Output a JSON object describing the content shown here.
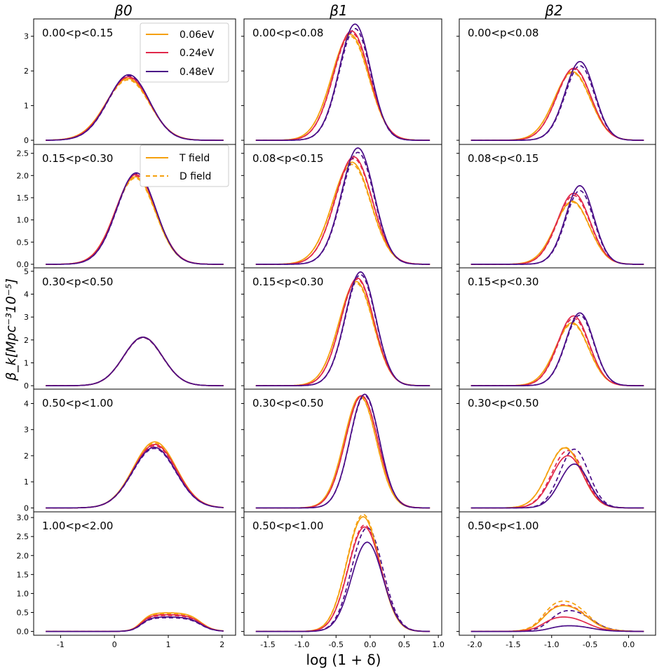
{
  "figure": {
    "column_titles": [
      "β0",
      "β1",
      "β2"
    ],
    "xlabel": "log (1 + δ)",
    "ylabel": "β_k[Mpc⁻³10⁻⁵]"
  },
  "legends": {
    "neutrino_masses": [
      {
        "label": "0.06eV",
        "color": "#f5a00d"
      },
      {
        "label": "0.24eV",
        "color": "#e0284a"
      },
      {
        "label": "0.48eV",
        "color": "#4a0c87"
      }
    ],
    "field_types": [
      {
        "label": "T field",
        "style": "solid",
        "color": "#f5a00d"
      },
      {
        "label": "D field",
        "style": "dashed",
        "color": "#f5a00d"
      }
    ]
  },
  "chart_data": {
    "type": "line",
    "grid": false,
    "columns": [
      {
        "title": "β0",
        "xlim": [
          -1.5,
          2.25
        ],
        "xticks": [
          -1,
          0,
          1,
          2
        ],
        "panels": [
          {
            "label": "0.00<p<0.15",
            "ylim": [
              -0.12,
              3.5
            ],
            "yticks": [
              0,
              1,
              2,
              3
            ],
            "curves": {
              "mu": [
                0.15,
                0.16,
                0.17
              ],
              "sigma": [
                0.42,
                0.41,
                0.4
              ],
              "skew": [
                0.35,
                0.35,
                0.35
              ],
              "T": [
                1.78,
                1.83,
                1.89
              ],
              "D": [
                1.74,
                1.8,
                1.86
              ]
            }
          },
          {
            "label": "0.15<p<0.30",
            "ylim": [
              -0.08,
              2.7
            ],
            "yticks": [
              0.0,
              0.5,
              1.0,
              1.5,
              2.0,
              2.5
            ],
            "curves": {
              "mu": [
                0.32,
                0.33,
                0.34
              ],
              "sigma": [
                0.38,
                0.38,
                0.37
              ],
              "skew": [
                0.25,
                0.25,
                0.25
              ],
              "T": [
                1.97,
                2.02,
                2.06
              ],
              "D": [
                1.94,
                1.99,
                2.03
              ]
            }
          },
          {
            "label": "0.30<p<0.50",
            "ylim": [
              -0.15,
              5.15
            ],
            "yticks": [
              0,
              1,
              2,
              3,
              4,
              5
            ],
            "curves": {
              "mu": [
                0.53,
                0.53,
                0.53
              ],
              "sigma": [
                0.36,
                0.36,
                0.36
              ],
              "skew": [
                0.0,
                0.0,
                0.0
              ],
              "T": [
                2.12,
                2.12,
                2.12
              ],
              "D": [
                2.1,
                2.1,
                2.1
              ]
            }
          },
          {
            "label": "0.50<p<1.00",
            "ylim": [
              -0.15,
              4.55
            ],
            "yticks": [
              0,
              1,
              2,
              3,
              4
            ],
            "curves": {
              "mu": [
                0.75,
                0.75,
                0.74
              ],
              "sigma": [
                0.4,
                0.4,
                0.4
              ],
              "skew": [
                0.0,
                0.0,
                0.0
              ],
              "T": [
                2.53,
                2.43,
                2.32
              ],
              "D": [
                2.48,
                2.38,
                2.28
              ]
            }
          },
          {
            "label": "1.00<p<2.00",
            "ylim": [
              -0.1,
              3.15
            ],
            "yticks": [
              0.0,
              0.5,
              1.0,
              1.5,
              2.0,
              2.5,
              3.0
            ],
            "curves": {
              "mu": [
                1.05,
                1.05,
                1.05
              ],
              "sigma": [
                0.55,
                0.55,
                0.55
              ],
              "skew": [
                0.0,
                0.0,
                0.0
              ],
              "flat": true,
              "T": [
                0.49,
                0.44,
                0.38
              ],
              "D": [
                0.47,
                0.42,
                0.36
              ]
            }
          }
        ]
      },
      {
        "title": "β1",
        "xlim": [
          -1.85,
          1.05
        ],
        "xticks": [
          -1.5,
          -1.0,
          -0.5,
          0.0,
          0.5,
          1.0
        ],
        "panels": [
          {
            "label": "0.00<p<0.08",
            "ylim": [
              -0.12,
              3.5
            ],
            "yticks": [
              0,
              1,
              2,
              3
            ],
            "curves": {
              "mu": [
                -0.35,
                -0.33,
                -0.28
              ],
              "sigma": [
                0.28,
                0.27,
                0.24
              ],
              "skew": [
                0.3,
                0.3,
                0.35
              ],
              "T": [
                3.05,
                3.15,
                3.35
              ],
              "D": [
                3.0,
                3.1,
                3.22
              ]
            }
          },
          {
            "label": "0.08<p<0.15",
            "ylim": [
              -0.08,
              2.7
            ],
            "yticks": [
              0.0,
              0.5,
              1.0,
              1.5,
              2.0,
              2.5
            ],
            "curves": {
              "mu": [
                -0.33,
                -0.3,
                -0.24
              ],
              "sigma": [
                0.29,
                0.28,
                0.25
              ],
              "skew": [
                0.3,
                0.3,
                0.35
              ],
              "T": [
                2.3,
                2.42,
                2.62
              ],
              "D": [
                2.25,
                2.38,
                2.52
              ]
            }
          },
          {
            "label": "0.15<p<0.30",
            "ylim": [
              -0.15,
              5.15
            ],
            "yticks": [
              0,
              1,
              2,
              3,
              4,
              5
            ],
            "curves": {
              "mu": [
                -0.26,
                -0.24,
                -0.19
              ],
              "sigma": [
                0.26,
                0.25,
                0.23
              ],
              "skew": [
                0.3,
                0.3,
                0.3
              ],
              "T": [
                4.55,
                4.7,
                4.97
              ],
              "D": [
                4.48,
                4.65,
                4.85
              ]
            }
          },
          {
            "label": "0.30<p<0.50",
            "ylim": [
              -0.15,
              4.55
            ],
            "yticks": [
              0,
              1,
              2,
              3,
              4
            ],
            "curves": {
              "mu": [
                -0.18,
                -0.16,
                -0.12
              ],
              "sigma": [
                0.24,
                0.24,
                0.22
              ],
              "skew": [
                0.2,
                0.2,
                0.25
              ],
              "T": [
                4.28,
                4.3,
                4.35
              ],
              "D": [
                4.25,
                4.28,
                4.3
              ]
            }
          },
          {
            "label": "0.50<p<1.00",
            "ylim": [
              -0.1,
              3.15
            ],
            "yticks": [
              0.0,
              0.5,
              1.0,
              1.5,
              2.0,
              2.5,
              3.0
            ],
            "curves": {
              "mu": [
                -0.12,
                -0.1,
                -0.06
              ],
              "sigma": [
                0.24,
                0.24,
                0.23
              ],
              "skew": [
                0.1,
                0.1,
                0.1
              ],
              "T": [
                3.02,
                2.75,
                2.35
              ],
              "D": [
                3.08,
                2.8,
                2.73
              ]
            }
          }
        ]
      },
      {
        "title": "β2",
        "xlim": [
          -2.2,
          0.35
        ],
        "xticks": [
          -2.0,
          -1.5,
          -1.0,
          -0.5,
          0.0
        ],
        "panels": [
          {
            "label": "0.00<p<0.08",
            "ylim": [
              -0.12,
              3.5
            ],
            "yticks": [
              0,
              1,
              2,
              3
            ],
            "curves": {
              "mu": [
                -0.78,
                -0.76,
                -0.68
              ],
              "sigma": [
                0.24,
                0.23,
                0.2
              ],
              "skew": [
                0.3,
                0.3,
                0.35
              ],
              "T": [
                1.98,
                2.08,
                2.27
              ],
              "D": [
                1.95,
                2.05,
                2.15
              ]
            }
          },
          {
            "label": "0.08<p<0.15",
            "ylim": [
              -0.08,
              2.7
            ],
            "yticks": [
              0.0,
              0.5,
              1.0,
              1.5,
              2.0,
              2.5
            ],
            "curves": {
              "mu": [
                -0.78,
                -0.76,
                -0.68
              ],
              "sigma": [
                0.23,
                0.22,
                0.19
              ],
              "skew": [
                0.3,
                0.3,
                0.35
              ],
              "T": [
                1.42,
                1.6,
                1.77
              ],
              "D": [
                1.4,
                1.55,
                1.66
              ]
            }
          },
          {
            "label": "0.15<p<0.30",
            "ylim": [
              -0.15,
              5.15
            ],
            "yticks": [
              0,
              1,
              2,
              3,
              4,
              5
            ],
            "curves": {
              "mu": [
                -0.78,
                -0.76,
                -0.68
              ],
              "sigma": [
                0.22,
                0.21,
                0.19
              ],
              "skew": [
                0.3,
                0.3,
                0.35
              ],
              "T": [
                2.75,
                3.05,
                3.18
              ],
              "D": [
                2.7,
                2.95,
                3.08
              ]
            }
          },
          {
            "label": "0.30<p<0.50",
            "ylim": [
              -0.15,
              4.55
            ],
            "yticks": [
              0,
              1,
              2,
              3,
              4
            ],
            "curves": {
              "mu": [
                -0.86,
                -0.82,
                -0.74
              ],
              "sigma": [
                0.22,
                0.21,
                0.19
              ],
              "skew": [
                0.2,
                0.2,
                0.25
              ],
              "T": [
                2.3,
                2.0,
                1.68
              ],
              "D": [
                2.32,
                2.2,
                2.25
              ]
            }
          },
          {
            "label": "0.50<p<1.00",
            "ylim": [
              -0.1,
              3.15
            ],
            "yticks": [
              0.0,
              0.5,
              1.0,
              1.5,
              2.0,
              2.5,
              3.0
            ],
            "curves": {
              "mu": [
                -0.82,
                -0.82,
                -0.75
              ],
              "sigma": [
                0.28,
                0.28,
                0.26
              ],
              "skew": [
                0.0,
                0.0,
                0.0
              ],
              "flat": true,
              "T": [
                0.68,
                0.38,
                0.15
              ],
              "D": [
                0.8,
                0.7,
                0.55
              ]
            }
          }
        ]
      }
    ]
  }
}
